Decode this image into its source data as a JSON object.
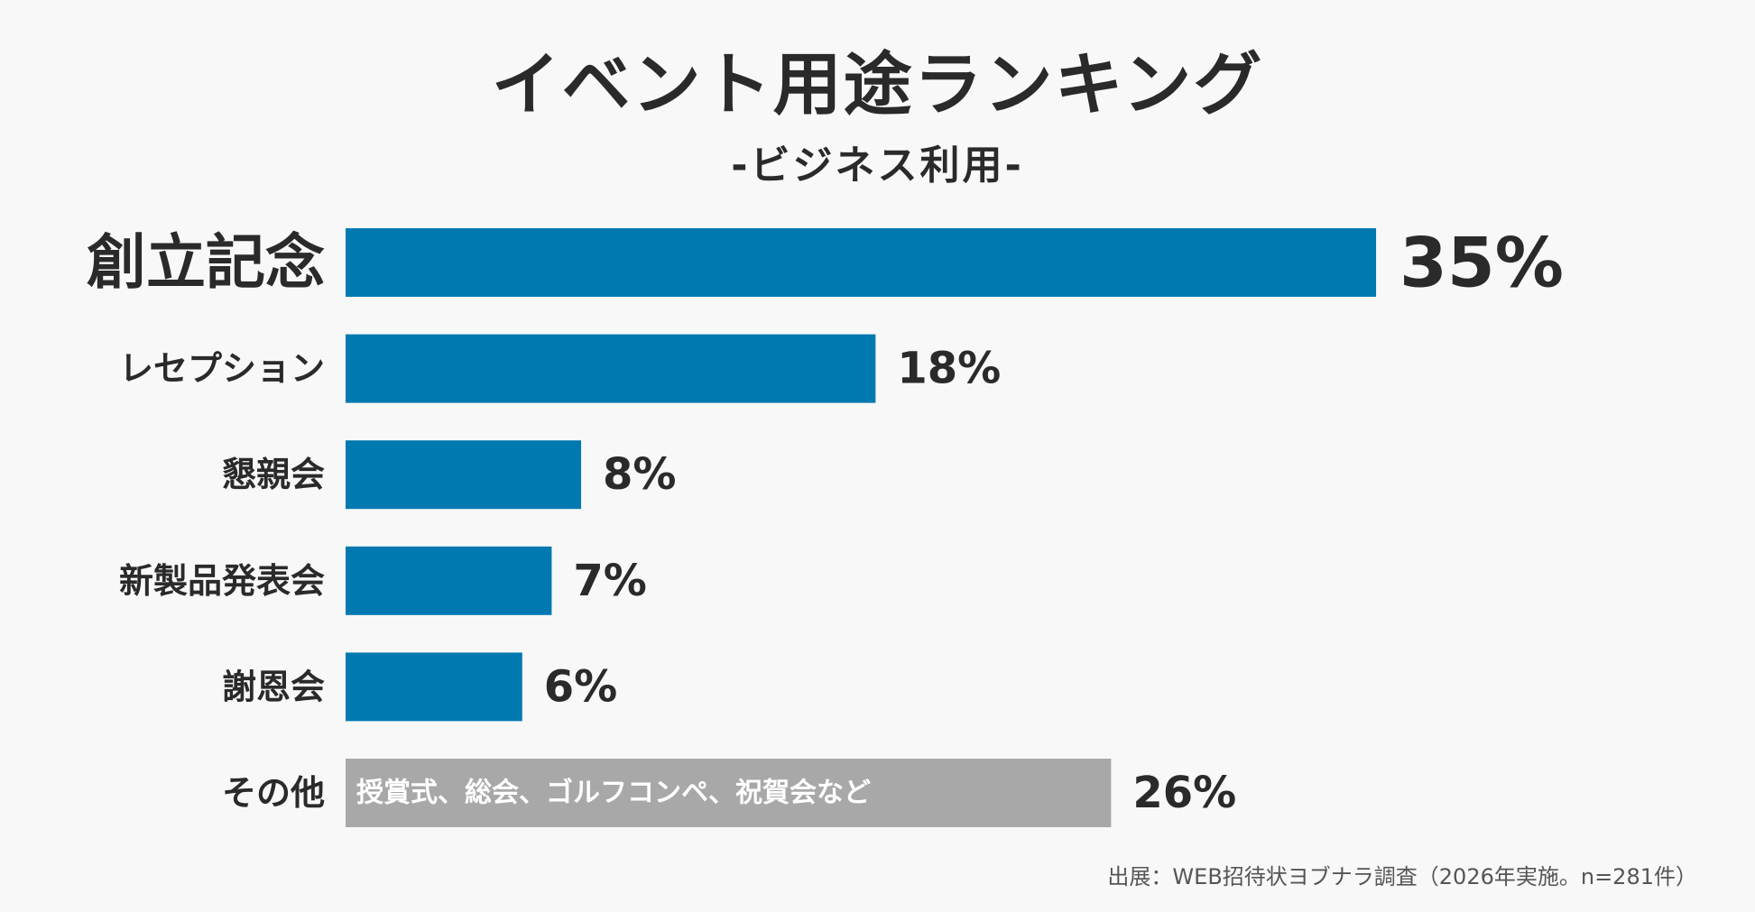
{
  "title": "イベント用途ランキング",
  "subtitle": "-ビジネス利用-",
  "source": "出展：WEB招待状ヨブナラ調査（2026年実施。n=281件）",
  "colors": {
    "primary_bar": "#0079b0",
    "other_bar": "#a8a8a8",
    "text": "#2a2a2a",
    "background": "#f8f8f8"
  },
  "chart_data": {
    "type": "bar",
    "orientation": "horizontal",
    "title": "イベント用途ランキング",
    "subtitle": "-ビジネス利用-",
    "categories": [
      "創立記念",
      "レセプション",
      "懇親会",
      "新製品発表会",
      "謝恩会",
      "その他"
    ],
    "values": [
      35,
      18,
      8,
      7,
      6,
      26
    ],
    "value_labels": [
      "35%",
      "18%",
      "8%",
      "7%",
      "6%",
      "26%"
    ],
    "unit": "%",
    "notes": [
      "",
      "",
      "",
      "",
      "",
      "授賞式、総会、ゴルフコンペ、祝賀会など"
    ],
    "bar_colors": [
      "#0079b0",
      "#0079b0",
      "#0079b0",
      "#0079b0",
      "#0079b0",
      "#a8a8a8"
    ],
    "xlabel": "",
    "ylabel": "",
    "grid": false,
    "legend": "none"
  }
}
